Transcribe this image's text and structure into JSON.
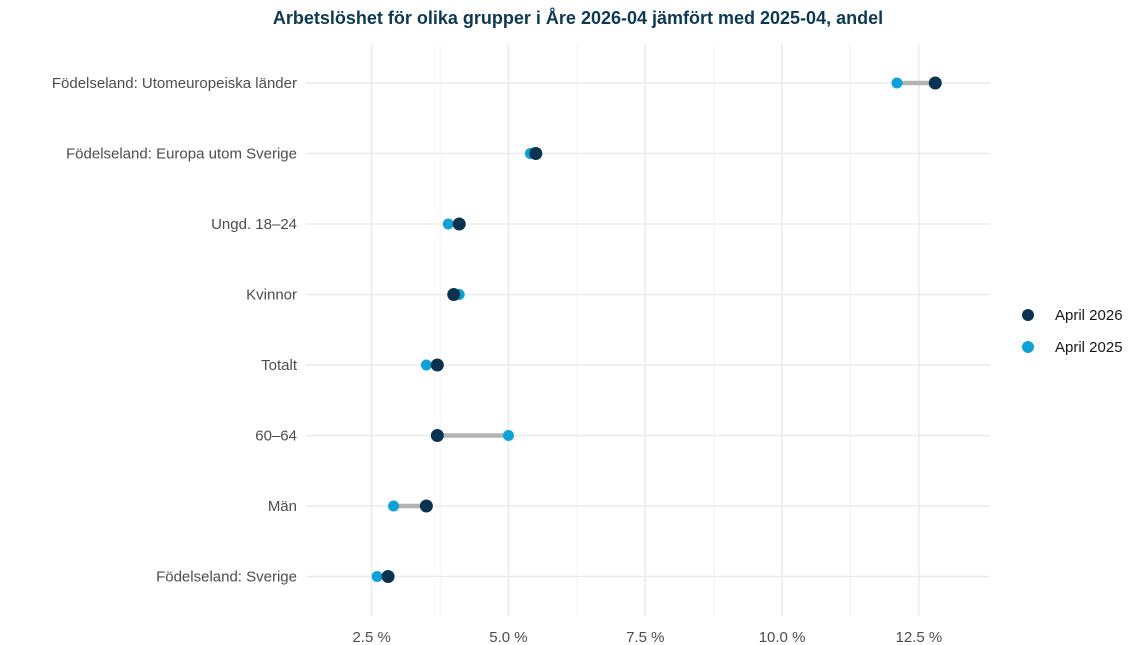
{
  "chart_data": {
    "type": "scatter",
    "subtype": "dumbbell",
    "title": "Arbetslöshet för olika grupper i Åre 2026-04 jämfört med 2025-04, andel",
    "xlabel": "",
    "ylabel": "",
    "xlim": [
      1.3,
      13.8
    ],
    "x_ticks": [
      2.5,
      5.0,
      7.5,
      10.0,
      12.5
    ],
    "x_tick_labels": [
      "2.5 %",
      "5.0 %",
      "7.5 %",
      "10.0 %",
      "12.5 %"
    ],
    "x_minor_ticks": [
      3.75,
      6.25,
      8.75,
      11.25
    ],
    "grid": true,
    "legend_position": "right",
    "categories": [
      "Födelseland: Utomeuropeiska länder",
      "Födelseland: Europa utom Sverige",
      "Ungd. 18–24",
      "Kvinnor",
      "Totalt",
      "60–64",
      "Män",
      "Födelseland: Sverige"
    ],
    "series": [
      {
        "name": "April 2026",
        "color": "#0b3350",
        "values": [
          12.8,
          5.5,
          4.1,
          4.0,
          3.7,
          3.7,
          3.5,
          2.8
        ]
      },
      {
        "name": "April 2025",
        "color": "#0ea2d8",
        "values": [
          12.1,
          5.4,
          3.9,
          4.1,
          3.5,
          5.0,
          2.9,
          2.6
        ]
      }
    ],
    "connector_color": "#b3b3b3"
  }
}
